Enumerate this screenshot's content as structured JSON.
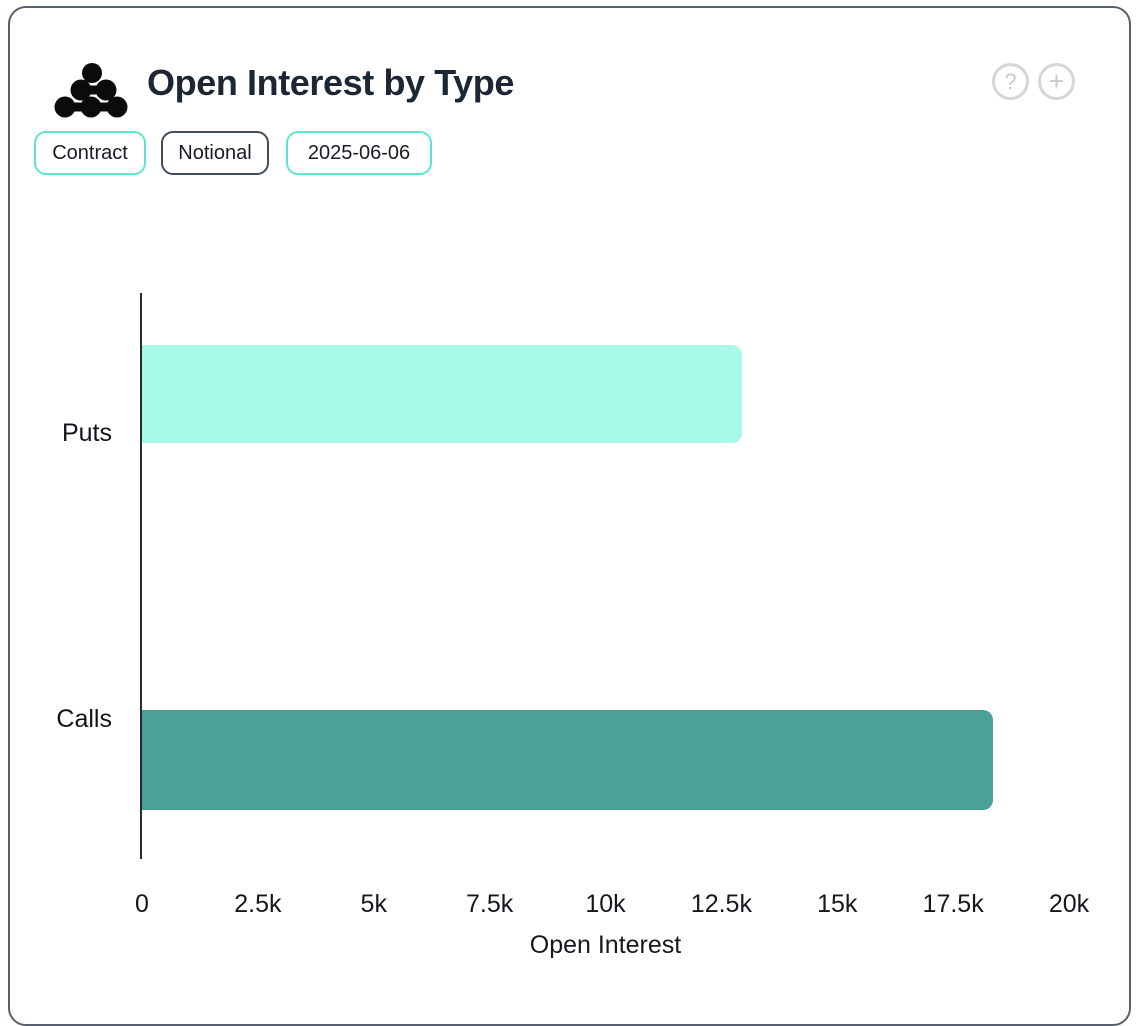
{
  "header": {
    "title": "Open Interest by Type",
    "icons": {
      "help": "?",
      "add": "+"
    }
  },
  "filters": {
    "contract_label": "Contract",
    "notional_label": "Notional",
    "date_label": "2025-06-06"
  },
  "colors": {
    "card_border": "#58606f",
    "teal_chip_border": "#5ce6d1",
    "dark_chip_border": "#434c5c",
    "puts_bar": "#A9F9EA",
    "calls_bar": "#4AA19A",
    "axis_line": "#2b2b2b"
  },
  "chart_data": {
    "type": "bar",
    "orientation": "horizontal",
    "title": "Open Interest by Type",
    "categories": [
      "Puts",
      "Calls"
    ],
    "values": [
      12950,
      18350
    ],
    "bar_colors": [
      "#A9F9EA",
      "#4AA19A"
    ],
    "xlabel": "Open Interest",
    "xlim": [
      0,
      20000
    ],
    "xticks": [
      "0",
      "2.5k",
      "5k",
      "7.5k",
      "10k",
      "12.5k",
      "15k",
      "17.5k",
      "20k"
    ],
    "grid": false,
    "legend": false
  }
}
